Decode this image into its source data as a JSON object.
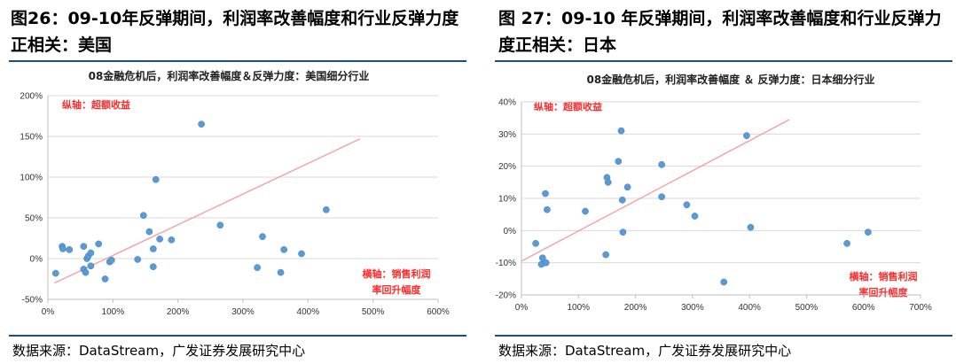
{
  "figures": [
    {
      "id": "us",
      "title": "图26：09-10年反弹期间，利润率改善幅度和行业反弹力度正相关：美国",
      "source": "数据来源：DataStream，广发证券发展研究中心"
    },
    {
      "id": "jp",
      "title": "图 27：09-10 年反弹期间，利润率改善幅度和行业反弹力度正相关：日本",
      "source": "数据来源：DataStream，广发证券发展研究中心"
    }
  ],
  "chart_data": [
    {
      "type": "scatter",
      "title": "08金融危机后，利润率改善幅度＆反弹力度：美国细分行业",
      "ylabel": "纵轴：超额收益",
      "xlabel_lines": [
        "横轴：销售利润",
        "率回升幅度"
      ],
      "xlim": [
        0,
        600
      ],
      "ylim": [
        -50,
        200
      ],
      "xticks": [
        0,
        100,
        200,
        300,
        400,
        500,
        600
      ],
      "yticks": [
        -50,
        0,
        50,
        100,
        150,
        200
      ],
      "xtick_labels": [
        "0%",
        "100%",
        "200%",
        "300%",
        "400%",
        "500%",
        "600%"
      ],
      "ytick_labels": [
        "-50%",
        "0%",
        "50%",
        "100%",
        "150%",
        "200%"
      ],
      "grid": "horizontal",
      "trendline": {
        "x": [
          10,
          480
        ],
        "y": [
          -30,
          147
        ]
      },
      "points": [
        {
          "x": 12,
          "y": -18
        },
        {
          "x": 22,
          "y": 15
        },
        {
          "x": 23,
          "y": 12
        },
        {
          "x": 33,
          "y": 11
        },
        {
          "x": 55,
          "y": 15
        },
        {
          "x": 55,
          "y": -13
        },
        {
          "x": 58,
          "y": -17
        },
        {
          "x": 60,
          "y": 0
        },
        {
          "x": 62,
          "y": 3
        },
        {
          "x": 66,
          "y": 7
        },
        {
          "x": 66,
          "y": -9
        },
        {
          "x": 78,
          "y": 18
        },
        {
          "x": 88,
          "y": -25
        },
        {
          "x": 95,
          "y": -4
        },
        {
          "x": 98,
          "y": -2
        },
        {
          "x": 138,
          "y": -1
        },
        {
          "x": 147,
          "y": 53
        },
        {
          "x": 156,
          "y": 33
        },
        {
          "x": 162,
          "y": 12
        },
        {
          "x": 162,
          "y": -10
        },
        {
          "x": 166,
          "y": 97
        },
        {
          "x": 172,
          "y": 24
        },
        {
          "x": 190,
          "y": 23
        },
        {
          "x": 236,
          "y": 165
        },
        {
          "x": 265,
          "y": 41
        },
        {
          "x": 322,
          "y": -11
        },
        {
          "x": 330,
          "y": 27
        },
        {
          "x": 358,
          "y": -17
        },
        {
          "x": 363,
          "y": 11
        },
        {
          "x": 390,
          "y": 6
        },
        {
          "x": 428,
          "y": 60
        }
      ]
    },
    {
      "type": "scatter",
      "title": "08金融危机后，利润率改善幅度 ＆ 反弹力度：日本细分行业",
      "ylabel": "纵轴：超额收益",
      "xlabel_lines": [
        "横轴：销售利润",
        "率回升幅度"
      ],
      "xlim": [
        0,
        700
      ],
      "ylim": [
        -20,
        40
      ],
      "xticks": [
        0,
        100,
        200,
        300,
        400,
        500,
        600,
        700
      ],
      "yticks": [
        -20,
        -10,
        0,
        10,
        20,
        30,
        40
      ],
      "xtick_labels": [
        "0%",
        "100%",
        "200%",
        "300%",
        "400%",
        "500%",
        "600%",
        "700%"
      ],
      "ytick_labels": [
        "-20%",
        "-10%",
        "0%",
        "10%",
        "20%",
        "30%",
        "40%"
      ],
      "grid": "horizontal",
      "trendline": {
        "x": [
          0,
          470
        ],
        "y": [
          -9.5,
          34.5
        ]
      },
      "points": [
        {
          "x": 25,
          "y": -4
        },
        {
          "x": 35,
          "y": -10.5
        },
        {
          "x": 37,
          "y": -8.5
        },
        {
          "x": 42,
          "y": 11.5
        },
        {
          "x": 43,
          "y": -10
        },
        {
          "x": 45,
          "y": 6.5
        },
        {
          "x": 112,
          "y": 6
        },
        {
          "x": 148,
          "y": -7.5
        },
        {
          "x": 150,
          "y": 16.5
        },
        {
          "x": 152,
          "y": 15
        },
        {
          "x": 170,
          "y": 21.5
        },
        {
          "x": 175,
          "y": 31
        },
        {
          "x": 177,
          "y": 9.5
        },
        {
          "x": 178,
          "y": -0.5
        },
        {
          "x": 186,
          "y": 13.5
        },
        {
          "x": 246,
          "y": 20.5
        },
        {
          "x": 246,
          "y": 10.5
        },
        {
          "x": 290,
          "y": 8
        },
        {
          "x": 304,
          "y": 4.5
        },
        {
          "x": 355,
          "y": -16
        },
        {
          "x": 395,
          "y": 29.5
        },
        {
          "x": 402,
          "y": 1
        },
        {
          "x": 571,
          "y": -4
        },
        {
          "x": 608,
          "y": -0.5
        }
      ]
    }
  ]
}
